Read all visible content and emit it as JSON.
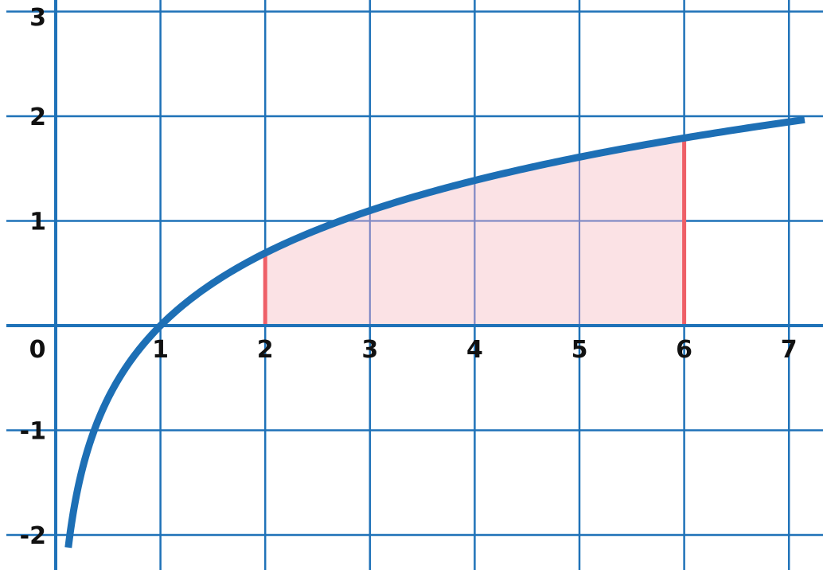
{
  "chart_data": {
    "type": "line",
    "title": "",
    "xlabel": "",
    "ylabel": "",
    "xlim": [
      -0.5,
      7.15
    ],
    "ylim": [
      -2.15,
      3.0
    ],
    "grid": true,
    "x_ticks": [
      "1",
      "2",
      "3",
      "4",
      "5",
      "6",
      "7"
    ],
    "y_ticks": [
      "3",
      "2",
      "1",
      "-1",
      "-2"
    ],
    "origin_label": "0",
    "curve": {
      "function": "ln(x)",
      "x_start": 0.12,
      "x_end": 7.15
    },
    "shaded_region": {
      "x_from": 2,
      "x_to": 6,
      "under": "ln(x)"
    },
    "colors": {
      "grid": "#1F72B8",
      "axis": "#1F72B8",
      "curve": "#1D6FB5",
      "boundary": "#EE6068",
      "fill": "#FADDE1"
    }
  }
}
